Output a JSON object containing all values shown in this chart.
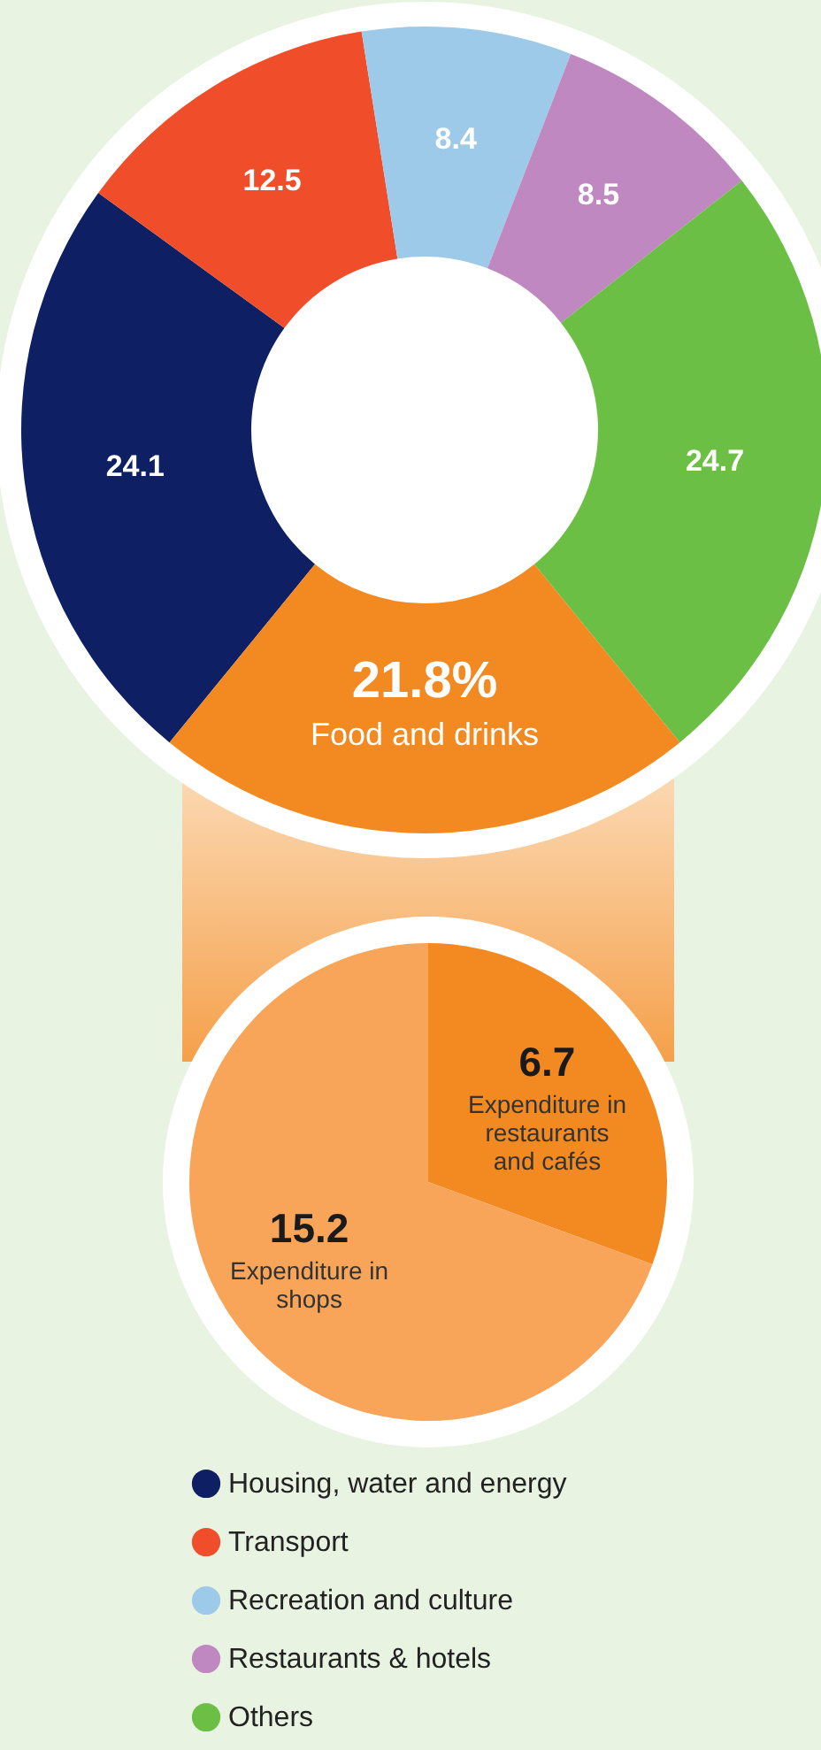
{
  "chart_data": [
    {
      "type": "donut",
      "categories": [
        "Housing, water and energy",
        "Transport",
        "Recreation and culture",
        "Restaurants & hotels",
        "Others",
        "Food and drinks"
      ],
      "values": [
        24.1,
        12.5,
        8.4,
        8.5,
        24.7,
        21.8
      ],
      "colors": [
        "#0e1f63",
        "#f04e2a",
        "#9ecae9",
        "#c088c0",
        "#6cbf45",
        "#f28a21"
      ],
      "value_labels": [
        "24.1",
        "12.5",
        "8.4",
        "8.5",
        "24.7",
        "21.8%"
      ],
      "legend": "bottom"
    },
    {
      "type": "pie",
      "categories": [
        "Expenditure in restaurants and cafés",
        "Expenditure in shops"
      ],
      "values": [
        6.7,
        15.2
      ],
      "colors": [
        "#f28a21",
        "#f8a55a"
      ],
      "data_labels": true
    }
  ]
}
